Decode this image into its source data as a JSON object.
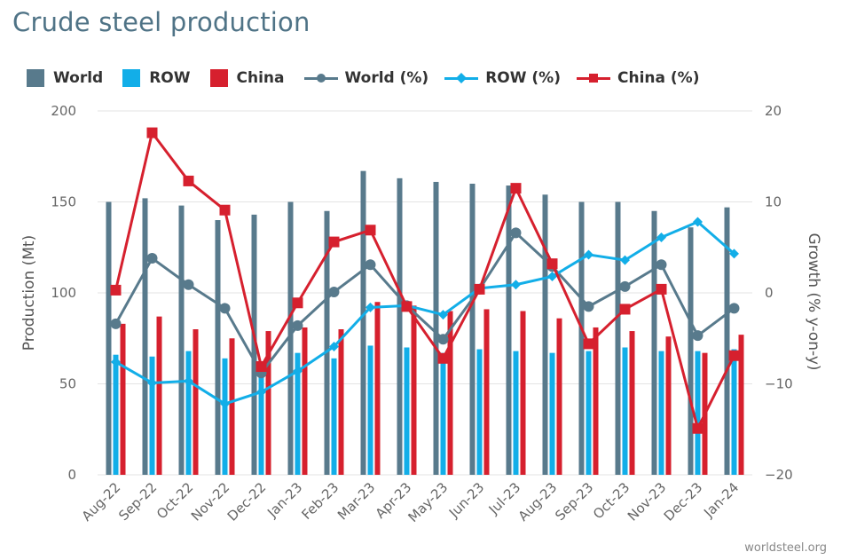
{
  "title": "Crude steel production",
  "footer": "worldsteel.org",
  "legend": [
    {
      "label": "World",
      "color": "#587a8c",
      "kind": "bar"
    },
    {
      "label": "ROW",
      "color": "#12aee8",
      "kind": "bar"
    },
    {
      "label": "China",
      "color": "#d6202e",
      "kind": "bar"
    },
    {
      "label": "World (%)",
      "color": "#587a8c",
      "kind": "line-circle"
    },
    {
      "label": "ROW (%)",
      "color": "#12aee8",
      "kind": "line-diamond"
    },
    {
      "label": "China (%)",
      "color": "#d6202e",
      "kind": "line-square"
    }
  ],
  "chart_data": {
    "type": "bar",
    "title": "Crude steel production",
    "categories": [
      "Aug-22",
      "Sep-22",
      "Oct-22",
      "Nov-22",
      "Dec-22",
      "Jan-23",
      "Feb-23",
      "Mar-23",
      "Apr-23",
      "May-23",
      "Jun-23",
      "Jul-23",
      "Aug-23",
      "Sep-23",
      "Oct-23",
      "Nov-23",
      "Dec-23",
      "Jan-24"
    ],
    "ylabel": "Production (Mt)",
    "y2label": "Growth (% y-on-y)",
    "ylim": [
      0,
      200
    ],
    "y2lim": [
      -20,
      20
    ],
    "yticks": [
      "0",
      "50",
      "100",
      "150",
      "200"
    ],
    "y2ticks": [
      "−20",
      "−10",
      "0",
      "10",
      "20"
    ],
    "grid": true,
    "legend_position": "top",
    "series": [
      {
        "name": "World",
        "type": "bar",
        "axis": "left",
        "color": "#587a8c",
        "values": [
          150,
          152,
          148,
          140,
          143,
          150,
          145,
          167,
          163,
          161,
          160,
          159,
          154,
          150,
          150,
          145,
          136,
          147
        ]
      },
      {
        "name": "ROW",
        "type": "bar",
        "axis": "left",
        "color": "#12aee8",
        "values": [
          66,
          65,
          68,
          64,
          59,
          67,
          64,
          71,
          70,
          67,
          69,
          68,
          67,
          68,
          70,
          68,
          68,
          69
        ]
      },
      {
        "name": "China",
        "type": "bar",
        "axis": "left",
        "color": "#d6202e",
        "values": [
          83,
          87,
          80,
          75,
          79,
          81,
          80,
          95,
          93,
          90,
          91,
          90,
          86,
          81,
          79,
          76,
          67,
          77
        ]
      },
      {
        "name": "World (%)",
        "type": "line",
        "axis": "right",
        "marker": "circle",
        "color": "#587a8c",
        "values": [
          -3.4,
          3.8,
          0.9,
          -1.7,
          -8.8,
          -3.6,
          0.1,
          3.1,
          -1.4,
          -5.1,
          0.4,
          6.6,
          2.9,
          -1.5,
          0.7,
          3.1,
          -4.7,
          -1.7
        ]
      },
      {
        "name": "ROW (%)",
        "type": "line",
        "axis": "right",
        "marker": "diamond",
        "color": "#12aee8",
        "values": [
          -7.6,
          -9.9,
          -9.7,
          -12.2,
          -10.9,
          -8.6,
          -5.9,
          -1.6,
          -1.4,
          -2.4,
          0.5,
          0.9,
          1.8,
          4.2,
          3.6,
          6.1,
          7.8,
          4.3
        ]
      },
      {
        "name": "China (%)",
        "type": "line",
        "axis": "right",
        "marker": "square",
        "color": "#d6202e",
        "values": [
          0.3,
          17.6,
          12.3,
          9.1,
          -8.1,
          -1.1,
          5.6,
          6.9,
          -1.5,
          -7.2,
          0.4,
          11.5,
          3.2,
          -5.6,
          -1.8,
          0.4,
          -14.9,
          -6.9
        ]
      }
    ]
  }
}
